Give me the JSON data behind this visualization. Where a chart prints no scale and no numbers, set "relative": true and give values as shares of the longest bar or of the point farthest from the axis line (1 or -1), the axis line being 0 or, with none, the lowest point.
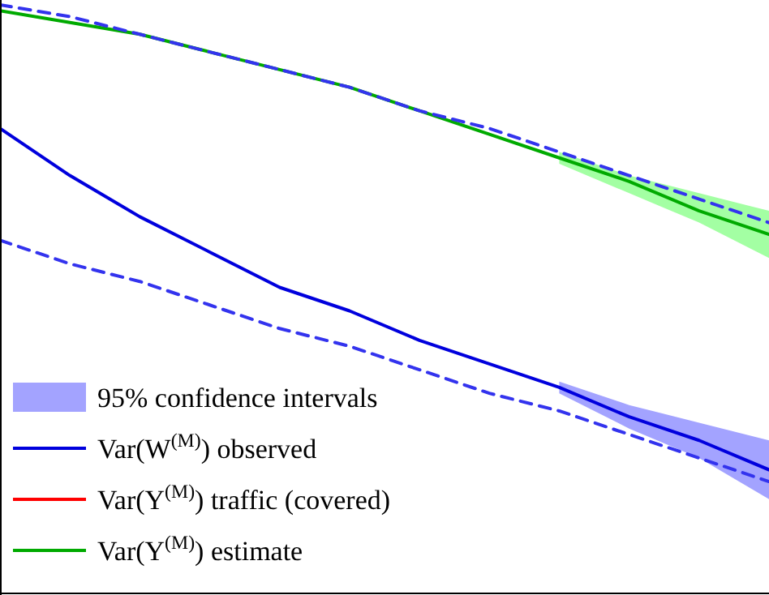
{
  "chart_data": {
    "type": "line",
    "relative": true,
    "categories": [
      null,
      null,
      null,
      null,
      null,
      null,
      null,
      null,
      null,
      null,
      null,
      null
    ],
    "series": [
      {
        "name": "Var(W$^{(M)}$) observed",
        "color": "#0000dd",
        "values": [
          0.79,
          0.71,
          0.64,
          0.58,
          0.52,
          0.48,
          0.43,
          0.39,
          0.35,
          0.3,
          0.26,
          0.21
        ],
        "lower": [
          null,
          null,
          null,
          null,
          null,
          null,
          null,
          null,
          0.34,
          0.28,
          0.23,
          0.16
        ],
        "upper": [
          null,
          null,
          null,
          null,
          null,
          null,
          null,
          null,
          0.36,
          0.32,
          0.29,
          0.26
        ]
      },
      {
        "name": "Var(Y$^{(M)}$) traffic (covered)",
        "color": "#ff0000",
        "values": [
          null,
          null,
          null,
          null,
          null,
          null,
          null,
          null,
          null,
          null,
          null,
          null
        ]
      },
      {
        "name": "Var(Y$^{(M)}$) estimate",
        "color": "#00aa00",
        "values": [
          0.99,
          0.97,
          0.95,
          0.92,
          0.89,
          0.86,
          0.82,
          0.78,
          0.74,
          0.7,
          0.65,
          0.61
        ],
        "lower": [
          null,
          null,
          null,
          null,
          null,
          null,
          null,
          null,
          0.73,
          0.68,
          0.63,
          0.57
        ],
        "upper": [
          null,
          null,
          null,
          null,
          null,
          null,
          null,
          null,
          0.75,
          0.71,
          0.68,
          0.65
        ]
      },
      {
        "color": "#3333ee",
        "line_style": "dashed",
        "values": [
          1.0,
          0.98,
          0.95,
          0.92,
          0.89,
          0.86,
          0.82,
          0.79,
          0.75,
          0.71,
          0.67,
          0.63
        ]
      },
      {
        "color": "#3333ee",
        "line_style": "dashed",
        "values": [
          0.6,
          0.56,
          0.53,
          0.49,
          0.45,
          0.42,
          0.38,
          0.34,
          0.31,
          0.27,
          0.23,
          0.19
        ]
      }
    ],
    "annotations": [
      "95% confidence intervals"
    ],
    "legend": "bottom left"
  }
}
